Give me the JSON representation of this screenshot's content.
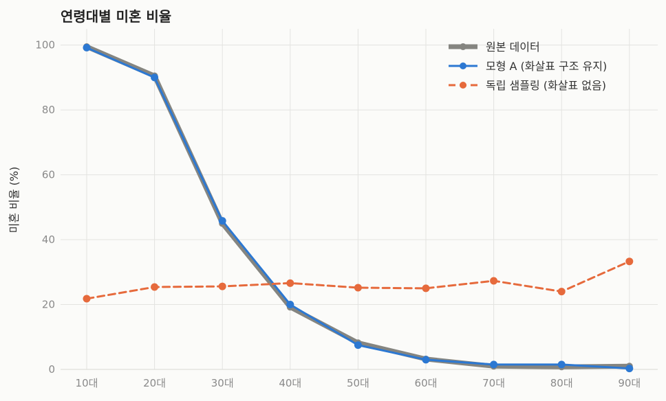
{
  "chart_data": {
    "type": "line",
    "title": "연령대별 미혼 비율",
    "xlabel": "",
    "ylabel": "미혼 비율 (%)",
    "categories": [
      "10대",
      "20대",
      "30대",
      "40대",
      "50대",
      "60대",
      "70대",
      "80대",
      "90대"
    ],
    "ylim": [
      0,
      105
    ],
    "yticks": [
      0,
      20,
      40,
      60,
      80,
      100
    ],
    "grid": true,
    "legend_position": "top-right",
    "series": [
      {
        "name": "원본 데이터",
        "values": [
          99.5,
          90.5,
          45.0,
          19.2,
          8.2,
          3.2,
          1.0,
          0.8,
          1.0
        ],
        "color": "#858580",
        "style": "solid-thick"
      },
      {
        "name": "모형 A (화살표 구조 유지)",
        "values": [
          99.2,
          90.0,
          45.8,
          20.0,
          7.5,
          3.0,
          1.5,
          1.5,
          0.3
        ],
        "color": "#2c78d2",
        "style": "solid"
      },
      {
        "name": "독립 샘플링 (화살표 없음)",
        "values": [
          21.8,
          25.4,
          25.6,
          26.6,
          25.2,
          25.0,
          27.3,
          24.0,
          33.3
        ],
        "color": "#e66a3c",
        "style": "dashed"
      }
    ]
  }
}
